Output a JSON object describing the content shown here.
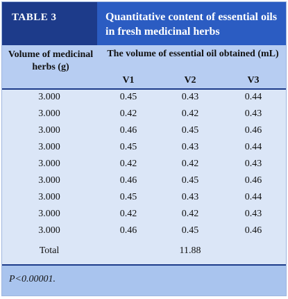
{
  "header": {
    "label": "TABLE 3",
    "title": "Quantitative content of essential oils in fresh medicinal herbs"
  },
  "table": {
    "group_header": "The volume of essential oil obtained (mL)",
    "columns": [
      "Volume of medicinal herbs (g)",
      "V1",
      "V2",
      "V3"
    ],
    "rows": [
      [
        "3.000",
        "0.45",
        "0.43",
        "0.44"
      ],
      [
        "3.000",
        "0.42",
        "0.42",
        "0.43"
      ],
      [
        "3.000",
        "0.46",
        "0.45",
        "0.46"
      ],
      [
        "3.000",
        "0.45",
        "0.43",
        "0.44"
      ],
      [
        "3.000",
        "0.42",
        "0.42",
        "0.43"
      ],
      [
        "3.000",
        "0.46",
        "0.45",
        "0.46"
      ],
      [
        "3.000",
        "0.45",
        "0.43",
        "0.44"
      ],
      [
        "3.000",
        "0.42",
        "0.42",
        "0.43"
      ],
      [
        "3.000",
        "0.46",
        "0.45",
        "0.46"
      ]
    ],
    "total": {
      "label": "Total",
      "value": "11.88"
    }
  },
  "footnote": "P<0.00001."
}
